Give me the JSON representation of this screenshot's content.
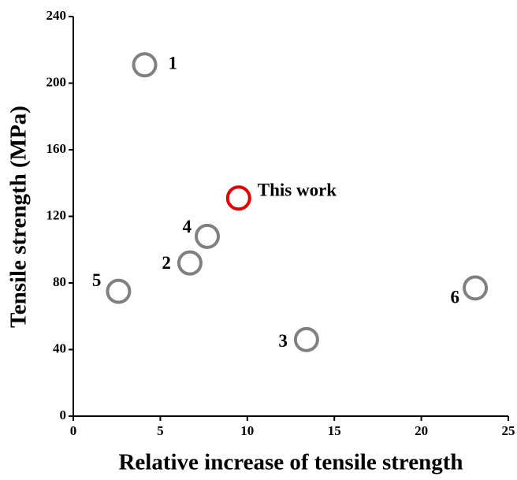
{
  "chart_data": {
    "type": "scatter",
    "xlabel": "Relative increase of tensile strength",
    "ylabel": "Tensile strength (MPa)",
    "x": [
      4.1,
      6.7,
      13.4,
      7.7,
      2.6,
      23.1,
      9.5
    ],
    "values": [
      211,
      92,
      46,
      108,
      75,
      77,
      131
    ],
    "labels": [
      "1",
      "2",
      "3",
      "4",
      "5",
      "6",
      "This work"
    ],
    "colors": [
      "#808080",
      "#808080",
      "#808080",
      "#808080",
      "#808080",
      "#808080",
      "#e00000"
    ],
    "xlim": [
      0,
      25
    ],
    "xticks": [
      0,
      5,
      10,
      15,
      20,
      25
    ],
    "ylim": [
      0,
      240
    ],
    "yticks": [
      0,
      40,
      80,
      120,
      160,
      200,
      240
    ]
  }
}
